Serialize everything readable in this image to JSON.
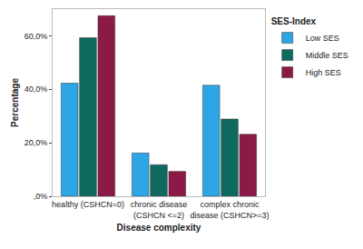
{
  "chart_data": {
    "type": "bar",
    "x_label": "Disease complexity",
    "y_label": "Percentage",
    "legend_title": "SES-Index",
    "legend": "right",
    "grid": false,
    "categories": [
      "healthy (CSHCN=0)",
      "chronic disease (CSHCN <=2)",
      "complex chronic disease (CSHCN>=3)"
    ],
    "series": [
      {
        "name": "Low SES",
        "color": "#2ea6e6",
        "values": [
          42.3,
          16.2,
          41.5
        ]
      },
      {
        "name": "Middle SES",
        "color": "#0e6a5e",
        "values": [
          59.3,
          11.8,
          28.9
        ]
      },
      {
        "name": "High SES",
        "color": "#8b1a47",
        "values": [
          67.5,
          9.3,
          23.2
        ]
      }
    ],
    "ylim": [
      0,
      70
    ],
    "yticks": [
      {
        "value": 0,
        "label": ",0%"
      },
      {
        "value": 20,
        "label": "20,0%"
      },
      {
        "value": 40,
        "label": "40,0%"
      },
      {
        "value": 60,
        "label": "60,0%"
      }
    ]
  }
}
